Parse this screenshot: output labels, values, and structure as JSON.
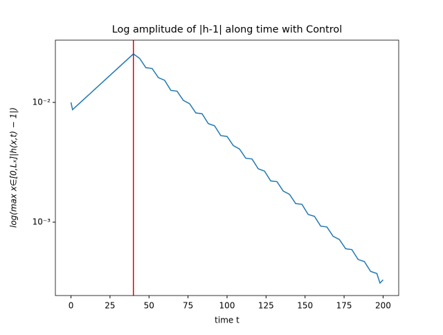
{
  "chart_data": {
    "type": "line",
    "title": "Log amplitude of |h-1| along time with Control",
    "xlabel": "time t",
    "ylabel": "log(max x∈[0,Lₓ]|h(x,t) − 1|)",
    "yscale": "log",
    "color": "#1f77b4",
    "x": [
      0,
      1,
      40,
      44,
      48,
      52,
      56,
      60,
      64,
      68,
      72,
      76,
      80,
      84,
      88,
      92,
      96,
      100,
      104,
      108,
      112,
      116,
      120,
      124,
      128,
      132,
      136,
      140,
      144,
      148,
      152,
      156,
      160,
      164,
      168,
      172,
      176,
      180,
      184,
      188,
      192,
      196,
      198,
      200
    ],
    "values": [
      0.01,
      0.0087,
      0.0254,
      0.0233,
      0.0195,
      0.0192,
      0.0161,
      0.0153,
      0.0126,
      0.0124,
      0.0104,
      0.00975,
      0.00817,
      0.00804,
      0.00665,
      0.00638,
      0.00528,
      0.0052,
      0.00436,
      0.00408,
      0.00342,
      0.00337,
      0.00279,
      0.00267,
      0.00221,
      0.00218,
      0.00182,
      0.00171,
      0.00143,
      0.00141,
      0.00116,
      0.00112,
      0.000927,
      0.000912,
      0.000762,
      0.000716,
      0.0006,
      0.00059,
      0.000488,
      0.000469,
      0.000388,
      0.000373,
      0.00031,
      0.00033
    ],
    "vline": {
      "x": 40,
      "color": "#e00000"
    },
    "xlim": [
      -10,
      210
    ],
    "xticks": [
      0,
      25,
      50,
      75,
      100,
      125,
      150,
      175,
      200
    ],
    "ylim": [
      0.000244,
      0.0331
    ],
    "yticks": [
      {
        "value": 0.001,
        "label": "10⁻³"
      },
      {
        "value": 0.01,
        "label": "10⁻²"
      }
    ]
  }
}
